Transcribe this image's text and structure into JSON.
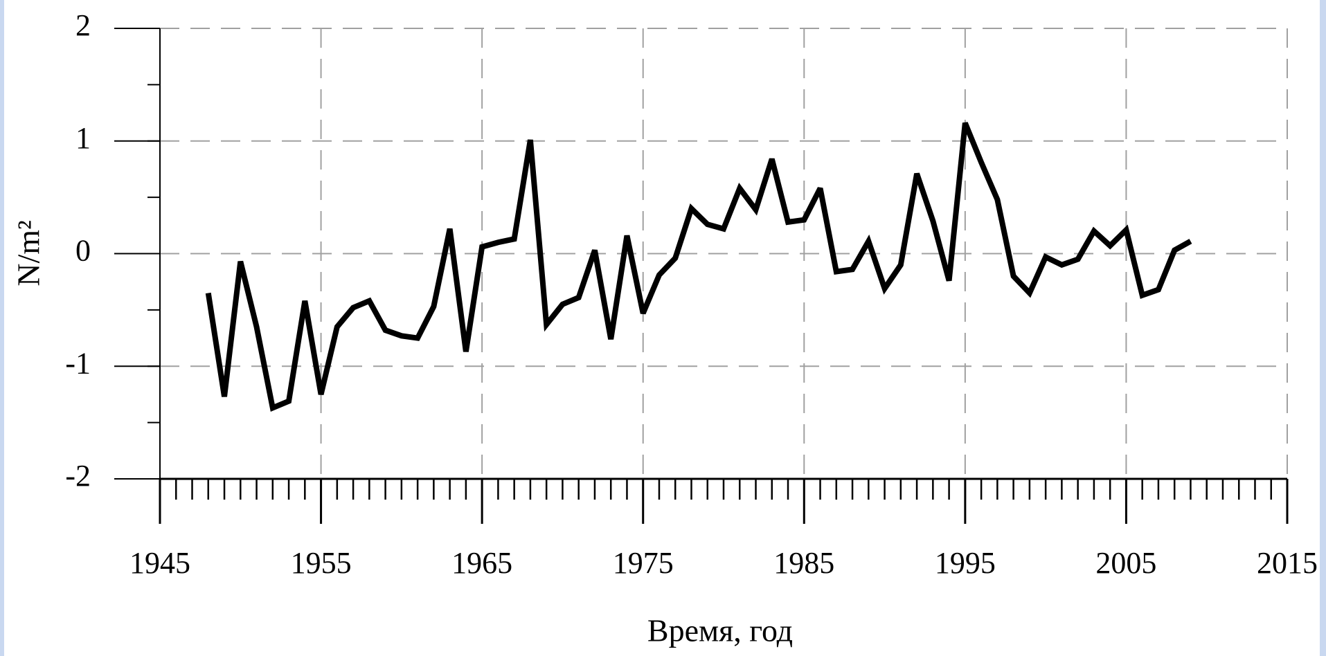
{
  "chart_data": {
    "type": "line",
    "xlabel": "Время, год",
    "ylabel": "N/m²",
    "x": [
      1948,
      1949,
      1950,
      1951,
      1952,
      1953,
      1954,
      1955,
      1956,
      1957,
      1958,
      1959,
      1960,
      1961,
      1962,
      1963,
      1964,
      1965,
      1966,
      1967,
      1968,
      1969,
      1970,
      1971,
      1972,
      1973,
      1974,
      1975,
      1976,
      1977,
      1978,
      1979,
      1980,
      1981,
      1982,
      1983,
      1984,
      1985,
      1986,
      1987,
      1988,
      1989,
      1990,
      1991,
      1992,
      1993,
      1994,
      1995,
      1996,
      1997,
      1998,
      1999,
      2000,
      2001,
      2002,
      2003,
      2004,
      2005,
      2006,
      2007,
      2008,
      2009
    ],
    "series": [
      {
        "color": "#000000",
        "values": [
          -0.35,
          -1.27,
          -0.07,
          -0.65,
          -1.37,
          -1.31,
          -0.42,
          -1.25,
          -0.65,
          -0.48,
          -0.42,
          -0.68,
          -0.73,
          -0.75,
          -0.47,
          0.22,
          -0.87,
          0.06,
          0.1,
          0.13,
          1.01,
          -0.63,
          -0.45,
          -0.39,
          0.03,
          -0.76,
          0.16,
          -0.53,
          -0.19,
          -0.04,
          0.4,
          0.26,
          0.22,
          0.58,
          0.39,
          0.84,
          0.28,
          0.3,
          0.58,
          -0.16,
          -0.14,
          0.11,
          -0.31,
          -0.1,
          0.71,
          0.29,
          -0.24,
          1.16,
          0.81,
          0.48,
          -0.2,
          -0.35,
          -0.03,
          -0.1,
          -0.05,
          0.2,
          0.07,
          0.21,
          -0.37,
          -0.32,
          0.03,
          0.11
        ]
      }
    ],
    "xlim": [
      1945,
      2015
    ],
    "xticks": [
      1945,
      1955,
      1965,
      1975,
      1985,
      1995,
      2005,
      2015
    ],
    "x_minor_tick_step": 1,
    "ylim": [
      -2,
      2
    ],
    "yticks": [
      -2,
      -1,
      0,
      1,
      2
    ],
    "y_minor_tick_step": 0.5,
    "grid": true
  }
}
